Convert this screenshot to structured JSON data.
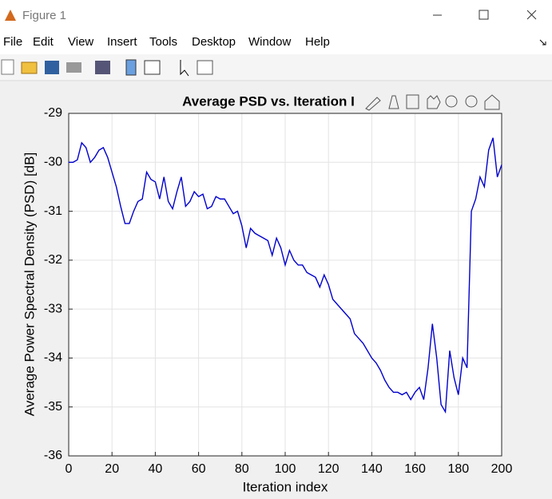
{
  "window": {
    "title": "Figure 1",
    "menu": [
      "File",
      "Edit",
      "View",
      "Insert",
      "Tools",
      "Desktop",
      "Window",
      "Help"
    ]
  },
  "chart_data": {
    "type": "line",
    "title": "Average PSD vs. Iteration I",
    "x_label": "Iteration index",
    "y_label": "Average Power Spectral Density (PSD) [dB]",
    "x": [
      0,
      2,
      4,
      6,
      8,
      10,
      12,
      14,
      16,
      18,
      20,
      22,
      24,
      26,
      28,
      30,
      32,
      34,
      36,
      38,
      40,
      42,
      44,
      46,
      48,
      50,
      52,
      54,
      56,
      58,
      60,
      62,
      64,
      66,
      68,
      70,
      72,
      74,
      76,
      78,
      80,
      82,
      84,
      86,
      88,
      90,
      92,
      94,
      96,
      98,
      100,
      102,
      104,
      106,
      108,
      110,
      112,
      114,
      116,
      118,
      120,
      122,
      124,
      126,
      128,
      130,
      132,
      134,
      136,
      138,
      140,
      142,
      144,
      146,
      148,
      150,
      152,
      154,
      156,
      158,
      160,
      162,
      164,
      166,
      168,
      170,
      172,
      174,
      176,
      178,
      180,
      182,
      184,
      186,
      188,
      190,
      192,
      194,
      196,
      198,
      200
    ],
    "series": [
      {
        "name": "Average PSD",
        "color": "#0000cd",
        "values": [
          -30.0,
          -30.0,
          -29.95,
          -29.6,
          -29.7,
          -30.0,
          -29.9,
          -29.75,
          -29.7,
          -29.9,
          -30.2,
          -30.5,
          -30.9,
          -31.25,
          -31.25,
          -31.0,
          -30.8,
          -30.75,
          -30.2,
          -30.35,
          -30.4,
          -30.75,
          -30.3,
          -30.8,
          -30.95,
          -30.6,
          -30.3,
          -30.9,
          -30.8,
          -30.6,
          -30.7,
          -30.65,
          -30.95,
          -30.9,
          -30.7,
          -30.75,
          -30.75,
          -30.9,
          -31.05,
          -31.0,
          -31.3,
          -31.75,
          -31.35,
          -31.45,
          -31.5,
          -31.55,
          -31.6,
          -31.9,
          -31.55,
          -31.75,
          -32.1,
          -31.8,
          -32.0,
          -32.1,
          -32.1,
          -32.25,
          -32.3,
          -32.35,
          -32.55,
          -32.3,
          -32.5,
          -32.8,
          -32.9,
          -33.0,
          -33.1,
          -33.2,
          -33.5,
          -33.6,
          -33.7,
          -33.85,
          -34.0,
          -34.1,
          -34.25,
          -34.45,
          -34.6,
          -34.7,
          -34.7,
          -34.75,
          -34.7,
          -34.85,
          -34.7,
          -34.6,
          -34.85,
          -34.2,
          -33.3,
          -34.0,
          -34.95,
          -35.1,
          -33.85,
          -34.4,
          -34.75,
          -34.0,
          -34.2,
          -31.0,
          -30.75,
          -30.3,
          -30.5,
          -29.75,
          -29.5,
          -30.3,
          -30.05
        ]
      }
    ],
    "xlim": [
      0,
      200
    ],
    "xticks": [
      0,
      20,
      40,
      60,
      80,
      100,
      120,
      140,
      160,
      180,
      200
    ],
    "ylim": [
      -36,
      -29
    ],
    "yticks": [
      -36,
      -35,
      -34,
      -33,
      -32,
      -31,
      -30,
      -29
    ],
    "grid": true
  }
}
